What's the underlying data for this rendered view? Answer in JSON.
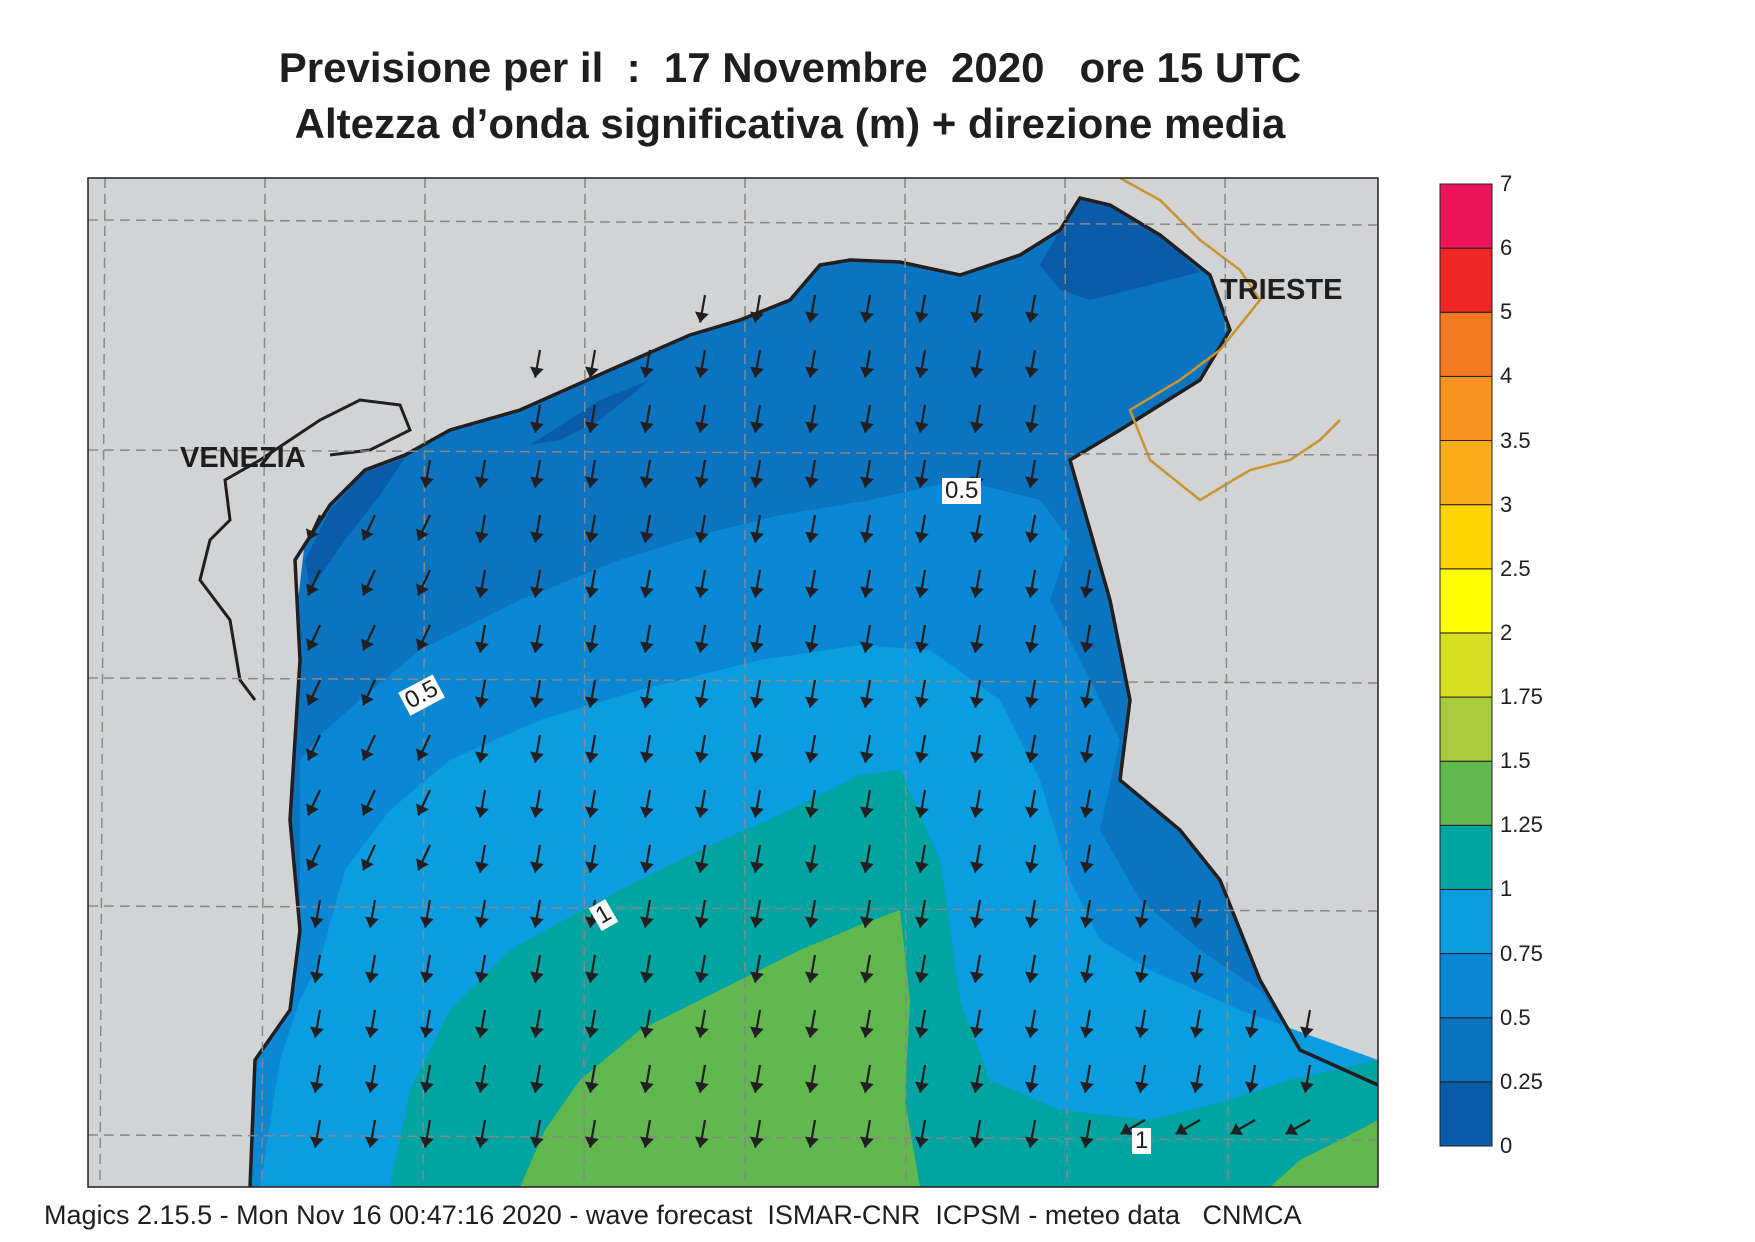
{
  "title_line1": "Previsione per il  :  17 Novembre  2020   ore 15 UTC",
  "title_line2": "Altezza d’onda significativa (m) + direzione media",
  "cities": {
    "venezia": "VENEZIA",
    "trieste": "TRIESTE"
  },
  "contour_labels": [
    "0.5",
    "0.5",
    "1",
    "1"
  ],
  "legend": {
    "levels": [
      "0",
      "0.25",
      "0.5",
      "0.75",
      "1",
      "1.25",
      "1.5",
      "1.75",
      "2",
      "2.5",
      "3",
      "3.5",
      "4",
      "5",
      "6",
      "7"
    ],
    "colors": [
      "#0a5ca8",
      "#0a74c1",
      "#0a88d4",
      "#0b9de0",
      "#00a4a0",
      "#60b84e",
      "#a8cb3c",
      "#d6e022",
      "#ffff00",
      "#ffd400",
      "#f9ae19",
      "#f7941d",
      "#f47920",
      "#ee2724",
      "#ed145b"
    ]
  },
  "colors": {
    "land": "#d1d3d4",
    "coast": "#231f20",
    "border": "#c8962e",
    "arrow": "#231f20"
  },
  "footer": "Magics 2.15.5 - Mon Nov 16 00:47:16 2020 - wave forecast  ISMAR-CNR  ICPSM - meteo data   CNMCA"
}
